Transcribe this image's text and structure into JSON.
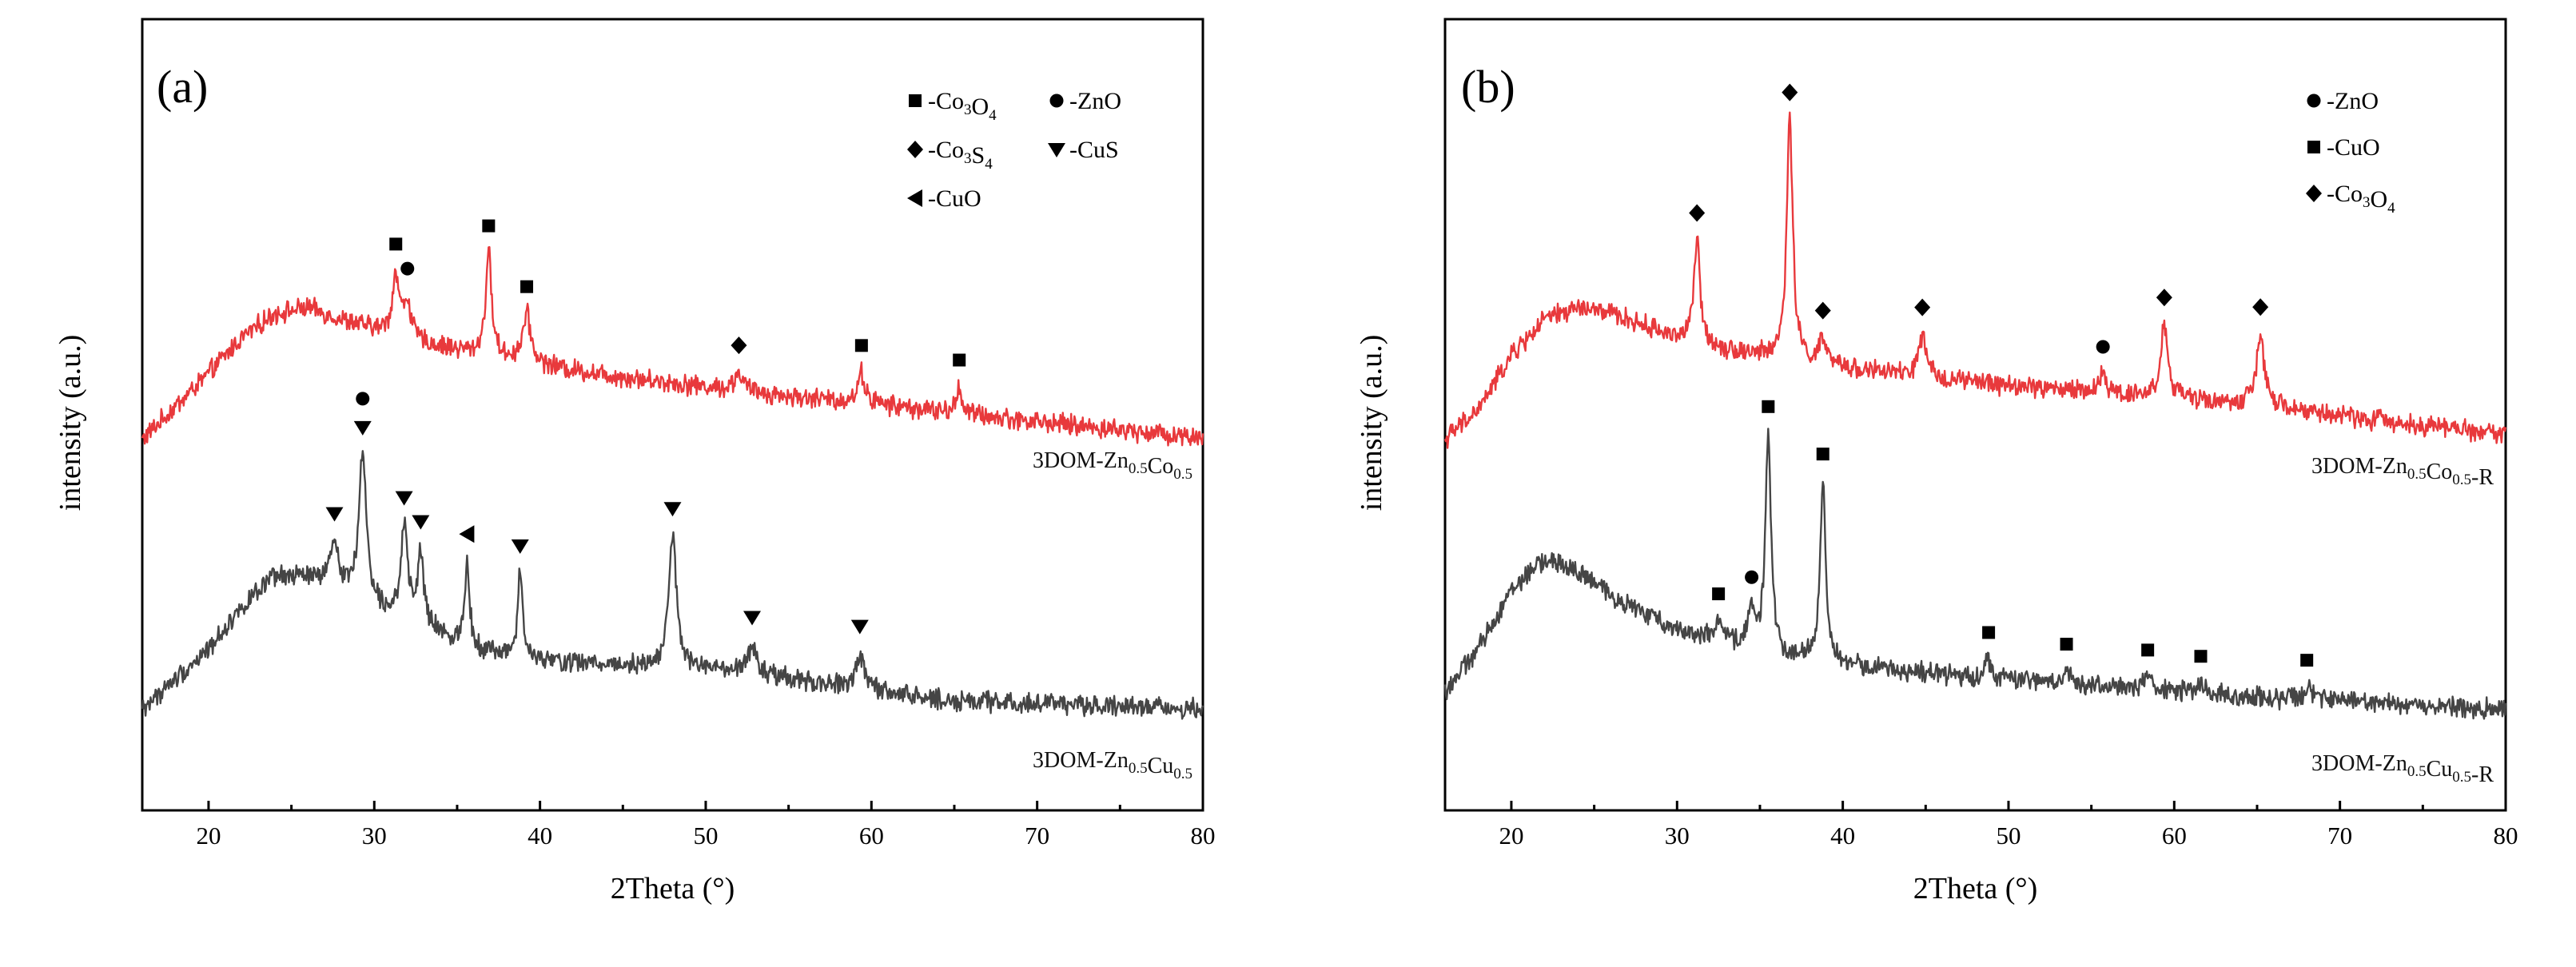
{
  "figure": {
    "background": "#ffffff"
  },
  "chart_data": [
    {
      "type": "line",
      "panel_label": "(a)",
      "xlabel": "2Theta (°)",
      "ylabel": "intensity (a.u.)",
      "xlim": [
        16,
        80
      ],
      "xticks": [
        20,
        30,
        40,
        50,
        60,
        70,
        80
      ],
      "y_ticks_shown": false,
      "legend": {
        "position": "top-right",
        "items": [
          {
            "symbol": "square",
            "prefix": "-Co",
            "sub1": "3",
            "mid": "O",
            "sub2": "4"
          },
          {
            "symbol": "circle",
            "prefix": "-ZnO",
            "sub1": "",
            "mid": "",
            "sub2": ""
          },
          {
            "symbol": "diamond",
            "prefix": "-Co",
            "sub1": "3",
            "mid": "S",
            "sub2": "4"
          },
          {
            "symbol": "triangle-down",
            "prefix": "-CuS",
            "sub1": "",
            "mid": "",
            "sub2": ""
          },
          {
            "symbol": "triangle-left",
            "prefix": "-CuO",
            "sub1": "",
            "mid": "",
            "sub2": ""
          }
        ]
      },
      "series": [
        {
          "name": "3DOM-Zn0.5Co0.5",
          "label": {
            "base": "3DOM-Zn",
            "s1": "0.5",
            "mid": "Co",
            "s2": "0.5",
            "tail": ""
          },
          "color": "#e8393c",
          "offset": 2.3,
          "baseline": {
            "x": [
              16,
              20,
              22,
              24,
              26,
              28,
              30,
              33,
              36,
              40,
              45,
              50,
              55,
              60,
              65,
              70,
              75,
              80
            ],
            "y": [
              0.0,
              0.55,
              0.85,
              1.05,
              1.1,
              1.0,
              0.92,
              0.8,
              0.72,
              0.62,
              0.52,
              0.44,
              0.36,
              0.3,
              0.22,
              0.15,
              0.08,
              0.02
            ]
          },
          "peaks": [
            {
              "x": 31.3,
              "h": 0.5,
              "w": 0.25,
              "marker": "square"
            },
            {
              "x": 32.0,
              "h": 0.3,
              "w": 0.25,
              "marker": "circle"
            },
            {
              "x": 36.9,
              "h": 0.85,
              "w": 0.22,
              "marker": "square"
            },
            {
              "x": 39.2,
              "h": 0.4,
              "w": 0.3,
              "marker": "square"
            },
            {
              "x": 52.0,
              "h": 0.15,
              "w": 0.3,
              "marker": "diamond"
            },
            {
              "x": 59.4,
              "h": 0.25,
              "w": 0.25,
              "marker": "square"
            },
            {
              "x": 65.3,
              "h": 0.22,
              "w": 0.2,
              "marker": "square"
            }
          ]
        },
        {
          "name": "3DOM-Zn0.5Cu0.5",
          "label": {
            "base": "3DOM-Zn",
            "s1": "0.5",
            "mid": "Cu",
            "s2": "0.5",
            "tail": ""
          },
          "color": "#454545",
          "offset": 0.0,
          "baseline": {
            "x": [
              16,
              20,
              22,
              24,
              26,
              28,
              30,
              33,
              36,
              40,
              45,
              50,
              55,
              60,
              65,
              70,
              75,
              80
            ],
            "y": [
              0.05,
              0.55,
              0.9,
              1.15,
              1.15,
              1.05,
              0.9,
              0.72,
              0.55,
              0.45,
              0.42,
              0.38,
              0.3,
              0.2,
              0.12,
              0.1,
              0.08,
              0.05
            ]
          },
          "peaks": [
            {
              "x": 27.6,
              "h": 0.35,
              "w": 0.3,
              "marker": "triangle-down"
            },
            {
              "x": 29.3,
              "h": 1.2,
              "w": 0.28,
              "marker": "triangle-down"
            },
            {
              "x": 31.8,
              "h": 0.75,
              "w": 0.25,
              "marker": "triangle-down"
            },
            {
              "x": 32.8,
              "h": 0.6,
              "w": 0.22,
              "marker": "triangle-down"
            },
            {
              "x": 35.6,
              "h": 0.7,
              "w": 0.18,
              "marker": "triangle-left"
            },
            {
              "x": 38.8,
              "h": 0.7,
              "w": 0.18,
              "marker": "triangle-down"
            },
            {
              "x": 48.0,
              "h": 1.1,
              "w": 0.28,
              "marker": "triangle-down"
            },
            {
              "x": 52.8,
              "h": 0.25,
              "w": 0.3,
              "marker": "triangle-down"
            },
            {
              "x": 59.3,
              "h": 0.3,
              "w": 0.3,
              "marker": "triangle-down"
            }
          ],
          "extra_markers": [
            {
              "x": 29.3,
              "marker": "circle",
              "above": true
            }
          ]
        }
      ]
    },
    {
      "type": "line",
      "panel_label": "(b)",
      "xlabel": "2Theta (°)",
      "ylabel": "intensity (a.u.)",
      "xlim": [
        16,
        80
      ],
      "xticks": [
        20,
        30,
        40,
        50,
        60,
        70,
        80
      ],
      "y_ticks_shown": false,
      "legend": {
        "position": "top-right",
        "items": [
          {
            "symbol": "circle",
            "prefix": "-ZnO",
            "sub1": "",
            "mid": "",
            "sub2": ""
          },
          {
            "symbol": "square",
            "prefix": "-CuO",
            "sub1": "",
            "mid": "",
            "sub2": ""
          },
          {
            "symbol": "diamond",
            "prefix": "-Co",
            "sub1": "3",
            "mid": "O",
            "sub2": "4"
          }
        ]
      },
      "series": [
        {
          "name": "3DOM-Zn0.5Co0.5-R",
          "label": {
            "base": "3DOM-Zn",
            "s1": "0.5",
            "mid": "Co",
            "s2": "0.5",
            "tail": "-R"
          },
          "color": "#e8393c",
          "offset": 2.3,
          "baseline": {
            "x": [
              16,
              18,
              20,
              22,
              24,
              26,
              28,
              30,
              33,
              36,
              40,
              45,
              50,
              55,
              60,
              65,
              70,
              75,
              80
            ],
            "y": [
              0.0,
              0.25,
              0.7,
              1.0,
              1.1,
              1.05,
              0.95,
              0.85,
              0.75,
              0.68,
              0.6,
              0.52,
              0.45,
              0.4,
              0.35,
              0.28,
              0.2,
              0.12,
              0.05
            ]
          },
          "peaks": [
            {
              "x": 31.2,
              "h": 0.85,
              "w": 0.22,
              "marker": "diamond"
            },
            {
              "x": 36.8,
              "h": 2.0,
              "w": 0.22,
              "marker": "diamond"
            },
            {
              "x": 38.8,
              "h": 0.2,
              "w": 0.25,
              "marker": "diamond"
            },
            {
              "x": 44.8,
              "h": 0.35,
              "w": 0.25,
              "marker": "diamond"
            },
            {
              "x": 55.7,
              "h": 0.15,
              "w": 0.25,
              "marker": "circle"
            },
            {
              "x": 59.4,
              "h": 0.6,
              "w": 0.25,
              "marker": "diamond"
            },
            {
              "x": 65.2,
              "h": 0.6,
              "w": 0.28,
              "marker": "diamond"
            }
          ]
        },
        {
          "name": "3DOM-Zn0.5Cu0.5-R",
          "label": {
            "base": "3DOM-Zn",
            "s1": "0.5",
            "mid": "Cu",
            "s2": "0.5",
            "tail": "-R"
          },
          "color": "#454545",
          "offset": 0.0,
          "baseline": {
            "x": [
              16,
              18,
              20,
              22,
              24,
              26,
              28,
              30,
              33,
              36,
              40,
              45,
              50,
              55,
              60,
              65,
              70,
              75,
              80
            ],
            "y": [
              0.2,
              0.55,
              1.05,
              1.3,
              1.2,
              1.0,
              0.85,
              0.72,
              0.6,
              0.5,
              0.42,
              0.35,
              0.3,
              0.25,
              0.2,
              0.15,
              0.12,
              0.08,
              0.05
            ]
          },
          "peaks": [
            {
              "x": 32.5,
              "h": 0.15,
              "w": 0.25,
              "marker": "square"
            },
            {
              "x": 34.5,
              "h": 0.3,
              "w": 0.3,
              "marker": "circle"
            },
            {
              "x": 35.5,
              "h": 1.8,
              "w": 0.2,
              "marker": "square"
            },
            {
              "x": 38.8,
              "h": 1.5,
              "w": 0.2,
              "marker": "square"
            },
            {
              "x": 48.8,
              "h": 0.15,
              "w": 0.25,
              "marker": "square"
            },
            {
              "x": 53.5,
              "h": 0.1,
              "w": 0.25,
              "marker": "square"
            },
            {
              "x": 58.4,
              "h": 0.1,
              "w": 0.25,
              "marker": "square"
            },
            {
              "x": 61.6,
              "h": 0.08,
              "w": 0.25,
              "marker": "square"
            },
            {
              "x": 68.0,
              "h": 0.1,
              "w": 0.25,
              "marker": "square"
            }
          ]
        }
      ]
    }
  ]
}
